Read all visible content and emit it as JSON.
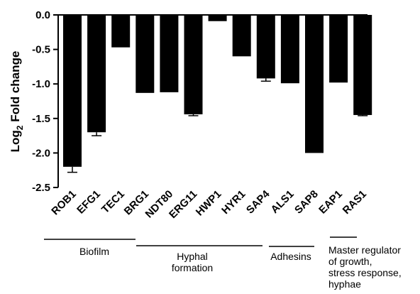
{
  "chart_data": {
    "type": "bar",
    "ylabel_main": "Log",
    "ylabel_sub": "2",
    "ylabel_rest": " Fold change",
    "ylim": [
      -2.5,
      0.0
    ],
    "yticks": [
      "0.0",
      "-0.5",
      "-1.0",
      "-1.5",
      "-2.0",
      "-2.5"
    ],
    "ytick_values": [
      0.0,
      -0.5,
      -1.0,
      -1.5,
      -2.0,
      -2.5
    ],
    "categories": [
      "ROB1",
      "EFG1",
      "TEC1",
      "BRG1",
      "NDT80",
      "ERG11",
      "HWP1",
      "HYR1",
      "SAP4",
      "ALS1",
      "SAP8",
      "EAP1",
      "RAS1"
    ],
    "values": [
      -2.2,
      -1.7,
      -0.47,
      -1.13,
      -1.12,
      -1.44,
      -0.09,
      -0.6,
      -0.92,
      -0.99,
      -2.0,
      -0.98,
      -1.45
    ],
    "errors": [
      0.08,
      0.05,
      0.0,
      0.0,
      0.0,
      0.02,
      0.0,
      0.0,
      0.04,
      0.0,
      0.0,
      0.0,
      0.01
    ],
    "bar_color": "#000000",
    "grid": false,
    "groups": [
      {
        "lines": [
          "Biofilm"
        ],
        "start": 0,
        "end": 3
      },
      {
        "lines": [
          "Hyphal",
          "formation"
        ],
        "start": 3,
        "end": 8
      },
      {
        "lines": [
          "Adhesins"
        ],
        "start": 9,
        "end": 10
      },
      {
        "lines": [
          "Master regulator",
          "of growth,",
          "stress response,",
          "hyphae"
        ],
        "start": 11,
        "end": 12
      }
    ]
  }
}
